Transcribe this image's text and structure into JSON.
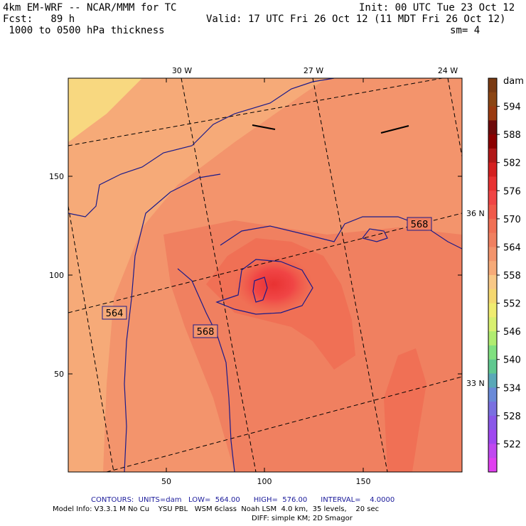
{
  "header": {
    "model": "4km EM-WRF -- NCAR/MMM for TC",
    "init": "Init: 00 UTC Tue 23 Oct 12",
    "forecast": "Fcst:   89 h",
    "valid": "Valid: 17 UTC Fri 26 Oct 12 (11 MDT Fri 26 Oct 12)",
    "field": " 1000 to 0500 hPa thickness",
    "smoothing": "sm= 4"
  },
  "map": {
    "x_axis_ticks": [
      "50",
      "100",
      "150"
    ],
    "y_axis_ticks": [
      "150",
      "100",
      "50"
    ],
    "longitude_labels": [
      "30 W",
      "27 W",
      "24 W"
    ],
    "latitude_labels": [
      "36 N",
      "33 N"
    ],
    "contour_labels": [
      "568",
      "564",
      "568"
    ]
  },
  "colorbar": {
    "unit": "dam",
    "labels": [
      "594",
      "588",
      "582",
      "576",
      "570",
      "564",
      "558",
      "552",
      "546",
      "540",
      "534",
      "528",
      "522"
    ],
    "colors": [
      "#7a3a12",
      "#8b4513",
      "#9a3a10",
      "#6e0a0a",
      "#8b0000",
      "#b01818",
      "#d42020",
      "#e83232",
      "#f04545",
      "#f05a4a",
      "#f07055",
      "#f08060",
      "#f3946c",
      "#f6aa78",
      "#f8c886",
      "#f5d870",
      "#f0ec70",
      "#d8f070",
      "#b0ec70",
      "#80e080",
      "#60c890",
      "#5aa8b8",
      "#6a8ad8",
      "#7a70e0",
      "#8a58e8",
      "#a048f0",
      "#c048f0",
      "#e040f0"
    ]
  },
  "footer": {
    "contours": "CONTOURS:  UNITS=dam   LOW=  564.00      HIGH=  576.00      INTERVAL=    4.0000",
    "model_info": "Model Info: V3.3.1 M No Cu    YSU PBL   WSM 6class  Noah LSM  4.0 km,  35 levels,    20 sec",
    "diff": "DIFF: simple KM; 2D Smagor"
  }
}
